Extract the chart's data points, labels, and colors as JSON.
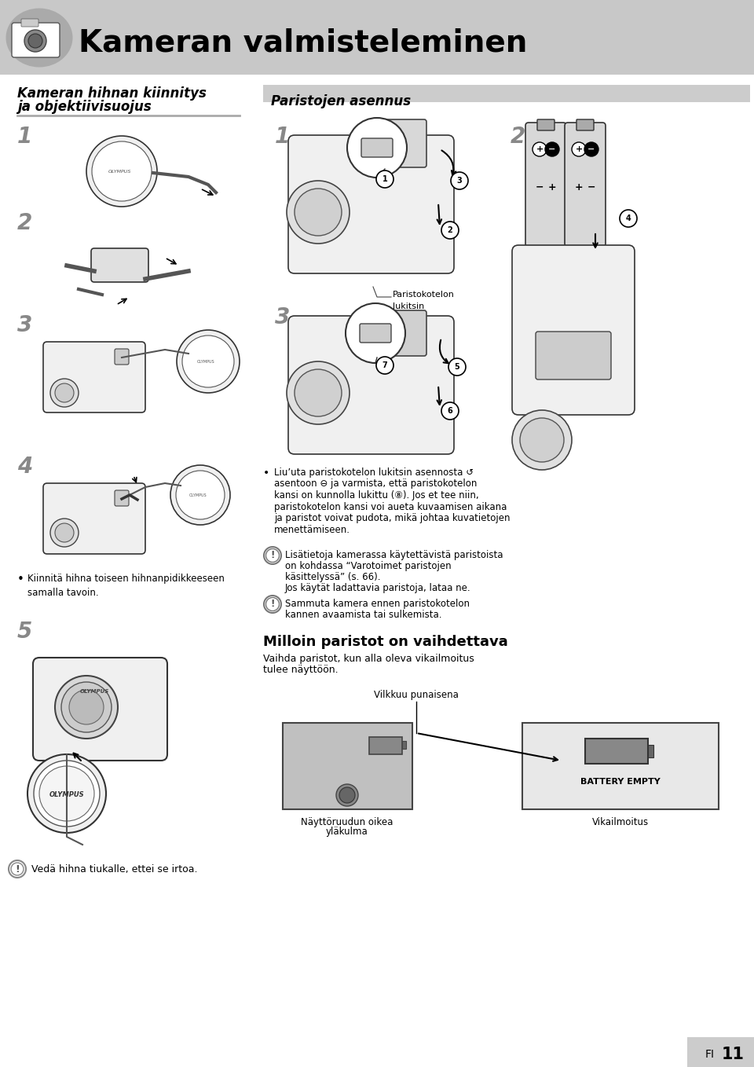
{
  "bg_color": "#ffffff",
  "page_width": 9.6,
  "page_height": 13.58,
  "header_bg": "#c8c8c8",
  "header_text": "Kameran valmisteleminen",
  "header_fontsize": 28,
  "left_section_title_line1": "Kameran hihnan kiinnitys",
  "left_section_title_line2": "ja objektiivisuojus",
  "right_section_title": "Paristojen asennus",
  "section_title_fontsize": 12,
  "step_num_fontsize": 20,
  "body_fontsize": 9.0,
  "small_fontsize": 8.5,
  "footer_text": "FI",
  "page_num": "11",
  "left_bullet_text": "Kiinnitä hihna toiseen hihnanpidikkeeseen\nsamalla tavoin.",
  "left_note_text": "Vedä hihna tiukalle, ettei se irtoa.",
  "right_bullet1_line1": "Liu’uta paristokotelon lukitsin asennosta",
  "right_bullet1_line2": "asentoon ⊖ ja varmista, että paristokotelon",
  "right_bullet1_line3": "kansi on kunnolla lukittu (⑧). Jos et tee niin,",
  "right_bullet1_line4": "paristokotelon kansi voi aueta kuvaamisen aikana",
  "right_bullet1_line5": "ja paristot voivat pudota, mikä johtaa kuvatietojen",
  "right_bullet1_line6": "menettämiseen.",
  "right_note1_line1": "Lisätietoja kamerassa käytettävistä paristoista",
  "right_note1_line2": "on kohdassa “Varotoimet paristojen",
  "right_note1_line3": "käsittelyssä” (s. 66).",
  "right_note1_line4": "Jos käytät ladattavia paristoja, lataa ne.",
  "right_note2_line1": "Sammuta kamera ennen paristokotelon",
  "right_note2_line2": "kannen avaamista tai sulkemista.",
  "bold_text": "Milloin paristot on vaihdettava",
  "bold_body_line1": "Vaihda paristot, kun alla oleva vikailmoitus",
  "bold_body_line2": "tulee näyttöön.",
  "vilkkuu_label": "Vilkkuu punaisena",
  "naytto_label1": "Näyttöruudun oikea",
  "naytto_label2": "yläkulma",
  "vikailmoitus_label": "Vikailmoitus",
  "battery_text": "BATTERY EMPTY",
  "paristokotelon_label1": "Paristokotelon",
  "paristokotelon_label2": "lukitsin",
  "section_line_color": "#aaaaaa",
  "note_icon_color": "#ff6600",
  "gray_light": "#e0e0e0",
  "gray_mid": "#b0b0b0",
  "gray_dark": "#555555"
}
